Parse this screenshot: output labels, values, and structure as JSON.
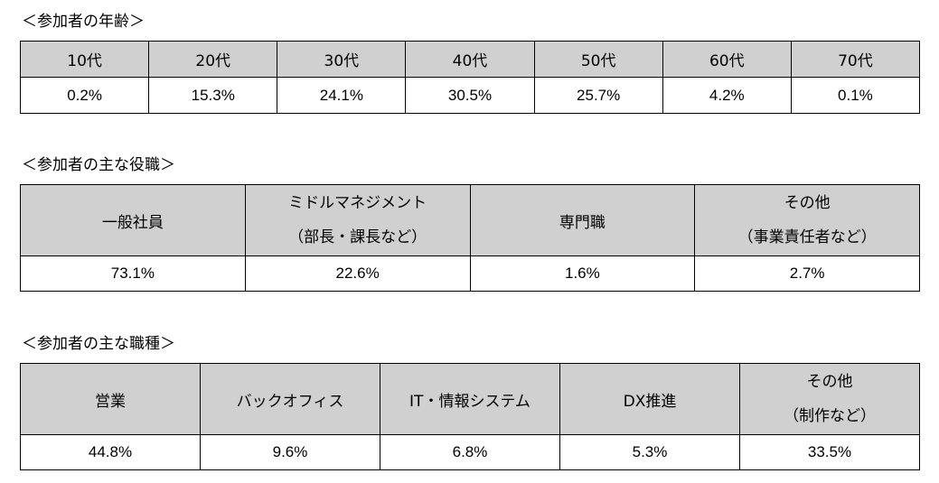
{
  "age": {
    "title": "＜参加者の年齢＞",
    "headers": [
      "10代",
      "20代",
      "30代",
      "40代",
      "50代",
      "60代",
      "70代"
    ],
    "values": [
      "0.2%",
      "15.3%",
      "24.1%",
      "30.5%",
      "25.7%",
      "4.2%",
      "0.1%"
    ]
  },
  "position": {
    "title": "＜参加者の主な役職＞",
    "headers": [
      {
        "line1": "一般社員",
        "line2": ""
      },
      {
        "line1": "ミドルマネジメント",
        "line2": "（部長・課長など）"
      },
      {
        "line1": "専門職",
        "line2": ""
      },
      {
        "line1": "その他",
        "line2": "（事業責任者など）"
      }
    ],
    "values": [
      "73.1%",
      "22.6%",
      "1.6%",
      "2.7%"
    ]
  },
  "job": {
    "title": "＜参加者の主な職種＞",
    "headers": [
      {
        "line1": "営業",
        "line2": ""
      },
      {
        "line1": "バックオフィス",
        "line2": ""
      },
      {
        "line1": "IT・情報システム",
        "line2": ""
      },
      {
        "line1": "DX推進",
        "line2": ""
      },
      {
        "line1": "その他",
        "line2": "（制作など）"
      }
    ],
    "values": [
      "44.8%",
      "9.6%",
      "6.8%",
      "5.3%",
      "33.5%"
    ]
  }
}
